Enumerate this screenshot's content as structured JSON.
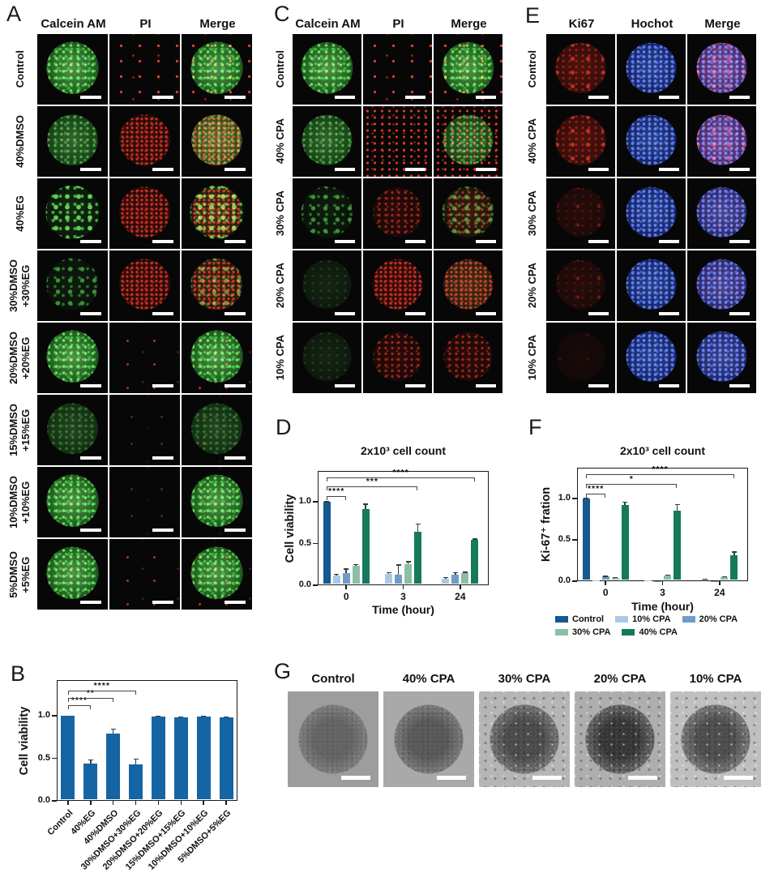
{
  "colors": {
    "control_blue": "#15598f",
    "cpa10_light_blue": "#abc9e6",
    "cpa20_mid_blue": "#6f9cc7",
    "cpa30_sage_green": "#8abfa3",
    "cpa40_dark_green": "#157a5b",
    "bar_steel_blue": "#1565a5"
  },
  "panels": {
    "A": {
      "label": "A",
      "columns": [
        "Calcein AM",
        "PI",
        "Merge"
      ],
      "rows": [
        {
          "label_lines": [
            "Control"
          ],
          "cells": [
            [
              "v-green-bright"
            ],
            [
              "v-red-field-sparse"
            ],
            [
              "v-green-bright",
              "v-red-field-sparse"
            ]
          ]
        },
        {
          "label_lines": [
            "40%DMSO"
          ],
          "cells": [
            [
              "v-green-med"
            ],
            [
              "v-red-blob-dense"
            ],
            [
              "v-green-med",
              "v-red-blob-dense"
            ]
          ]
        },
        {
          "label_lines": [
            "40%EG"
          ],
          "cells": [
            [
              "v-green-spots"
            ],
            [
              "v-red-blob-dense"
            ],
            [
              "v-green-spots",
              "v-red-blob-dense"
            ]
          ]
        },
        {
          "label_lines": [
            "30%DMSO",
            "+30%EG"
          ],
          "cells": [
            [
              "v-green-spots-dim"
            ],
            [
              "v-red-blob-dense"
            ],
            [
              "v-green-spots-dim",
              "v-red-blob-dense"
            ]
          ]
        },
        {
          "label_lines": [
            "20%DMSO",
            "+20%EG"
          ],
          "cells": [
            [
              "v-green-bright"
            ],
            [
              "v-red-field-few"
            ],
            [
              "v-green-bright",
              "v-red-field-few"
            ]
          ]
        },
        {
          "label_lines": [
            "15%DMSO",
            "+15%EG"
          ],
          "cells": [
            [
              "v-green-dim"
            ],
            [
              "v-red-field-dim"
            ],
            [
              "v-green-dim",
              "v-red-field-dim"
            ]
          ]
        },
        {
          "label_lines": [
            "10%DMSO",
            "+10%EG"
          ],
          "cells": [
            [
              "v-green-bright"
            ],
            [
              "v-red-field-dim"
            ],
            [
              "v-green-bright",
              "v-red-field-dim"
            ]
          ]
        },
        {
          "label_lines": [
            "5%DMSO",
            "+5%EG"
          ],
          "cells": [
            [
              "v-green-bright"
            ],
            [
              "v-red-field-few"
            ],
            [
              "v-green-bright",
              "v-red-field-few"
            ]
          ]
        }
      ]
    },
    "B": {
      "label": "B"
    },
    "C": {
      "label": "C",
      "columns": [
        "Calcein AM",
        "PI",
        "Merge"
      ],
      "rows": [
        {
          "label_lines": [
            "Control"
          ],
          "cells": [
            [
              "v-green-bright"
            ],
            [
              "v-red-field-sparse"
            ],
            [
              "v-green-bright",
              "v-red-field-sparse"
            ]
          ]
        },
        {
          "label_lines": [
            "40% CPA"
          ],
          "cells": [
            [
              "v-green-med"
            ],
            [
              "v-red-field-dense"
            ],
            [
              "v-green-med",
              "v-red-field-dense"
            ]
          ]
        },
        {
          "label_lines": [
            "30% CPA"
          ],
          "cells": [
            [
              "v-green-spots-dim"
            ],
            [
              "v-red-blob-med"
            ],
            [
              "v-red-blob-med",
              "v-green-spots-dim"
            ]
          ]
        },
        {
          "label_lines": [
            "20% CPA"
          ],
          "cells": [
            [
              "v-green-vdim"
            ],
            [
              "v-red-blob-dense"
            ],
            [
              "v-red-blob-dense",
              "v-green-vdim"
            ]
          ]
        },
        {
          "label_lines": [
            "10% CPA"
          ],
          "cells": [
            [
              "v-green-vdim"
            ],
            [
              "v-red-blob-med"
            ],
            [
              "v-red-blob-med"
            ]
          ]
        }
      ]
    },
    "D": {
      "label": "D"
    },
    "E": {
      "label": "E",
      "columns": [
        "Ki67",
        "Hochot",
        "Merge"
      ],
      "rows": [
        {
          "label_lines": [
            "Control"
          ],
          "cells": [
            [
              "v-ki67-bright"
            ],
            [
              "v-blue-blob"
            ],
            [
              "v-blue-blob",
              "v-ki67-bright"
            ]
          ]
        },
        {
          "label_lines": [
            "40% CPA"
          ],
          "cells": [
            [
              "v-ki67-bright"
            ],
            [
              "v-blue-blob"
            ],
            [
              "v-blue-blob",
              "v-ki67-bright"
            ]
          ]
        },
        {
          "label_lines": [
            "30% CPA"
          ],
          "cells": [
            [
              "v-ki67-dim"
            ],
            [
              "v-blue-blob"
            ],
            [
              "v-blue-blob",
              "v-ki67-dim"
            ]
          ]
        },
        {
          "label_lines": [
            "20% CPA"
          ],
          "cells": [
            [
              "v-ki67-dim"
            ],
            [
              "v-blue-blob"
            ],
            [
              "v-blue-blob",
              "v-ki67-dim"
            ]
          ]
        },
        {
          "label_lines": [
            "10% CPA"
          ],
          "cells": [
            [
              "v-ki67-vdim"
            ],
            [
              "v-blue-blob"
            ],
            [
              "v-blue-blob",
              "v-ki67-vdim"
            ]
          ]
        }
      ]
    },
    "F": {
      "label": "F"
    },
    "G": {
      "label": "G",
      "images": [
        {
          "label": "Control",
          "bg": "#9d9d9d",
          "core": "light",
          "scatter": false
        },
        {
          "label": "40% CPA",
          "bg": "#a9a9a9",
          "core": "med",
          "scatter": false
        },
        {
          "label": "30% CPA",
          "bg": "#b5b5b5",
          "core": "dark",
          "scatter": true
        },
        {
          "label": "20% CPA",
          "bg": "#aeaeae",
          "core": "darkest",
          "scatter": true
        },
        {
          "label": "10% CPA",
          "bg": "#bfbfbf",
          "core": "dark",
          "scatter": true
        }
      ]
    }
  },
  "chart_data": [
    {
      "id": "B",
      "type": "bar",
      "title": "",
      "ylabel": "Cell viability",
      "xlabel": "",
      "categories": [
        "Control",
        "40%EG",
        "40%DMSO",
        "30%DMSO+30%EG",
        "20%DMSO+20%EG",
        "15%DMSO+15%EG",
        "10%DMSO+10%EG",
        "5%DMSO+5%EG"
      ],
      "values": [
        1.0,
        0.44,
        0.79,
        0.43,
        0.99,
        0.98,
        0.99,
        0.98
      ],
      "errors": [
        0,
        0.05,
        0.06,
        0.07,
        0.012,
        0.012,
        0.012,
        0.015
      ],
      "bar_color": "#1565a5",
      "ylim": [
        0,
        1.42
      ],
      "yticks": [
        0,
        0.5,
        1.0
      ],
      "grid": false,
      "legend_position": "none",
      "significance": [
        {
          "from": 0,
          "to": 1,
          "label": "****"
        },
        {
          "from": 0,
          "to": 2,
          "label": "**"
        },
        {
          "from": 0,
          "to": 3,
          "label": "****"
        }
      ]
    },
    {
      "id": "D",
      "type": "grouped-bar",
      "title": "2x10³ cell count",
      "ylabel": "Cell viability",
      "xlabel": "Time (hour)",
      "categories": [
        "0",
        "3",
        "24"
      ],
      "series": [
        {
          "name": "Control",
          "color": "#15598f",
          "values": [
            1.0,
            null,
            null
          ],
          "errors": [
            0.01,
            null,
            null
          ]
        },
        {
          "name": "10% CPA",
          "color": "#abc9e6",
          "values": [
            0.12,
            0.14,
            0.08
          ],
          "errors": [
            0.02,
            0.02,
            0.02
          ]
        },
        {
          "name": "20% CPA",
          "color": "#6f9cc7",
          "values": [
            0.15,
            0.13,
            0.13
          ],
          "errors": [
            0.05,
            0.12,
            0.03
          ]
        },
        {
          "name": "30% CPA",
          "color": "#8abfa3",
          "values": [
            0.23,
            0.25,
            0.15
          ],
          "errors": [
            0.025,
            0.04,
            0.015
          ]
        },
        {
          "name": "40% CPA",
          "color": "#157a5b",
          "values": [
            0.91,
            0.64,
            0.54
          ],
          "errors": [
            0.07,
            0.1,
            0.02
          ]
        }
      ],
      "ylim": [
        0,
        1.37
      ],
      "yticks": [
        0,
        0.5,
        1.0
      ],
      "grid": false,
      "legend_position": "none",
      "significance": [
        {
          "from": [
            0,
            0
          ],
          "to": [
            0,
            2
          ],
          "label": "****"
        },
        {
          "from": [
            0,
            0
          ],
          "to": [
            1,
            4
          ],
          "label": "***"
        },
        {
          "from": [
            0,
            0
          ],
          "to": [
            2,
            4
          ],
          "label": "****"
        }
      ]
    },
    {
      "id": "F",
      "type": "grouped-bar",
      "title": "2x10³ cell count",
      "ylabel": "Ki-67⁺ fration",
      "xlabel": "Time (hour)",
      "categories": [
        "0",
        "3",
        "24"
      ],
      "series": [
        {
          "name": "Control",
          "color": "#15598f",
          "values": [
            1.0,
            null,
            null
          ],
          "errors": [
            0.01,
            null,
            null
          ]
        },
        {
          "name": "10% CPA",
          "color": "#abc9e6",
          "values": [
            0.005,
            0.012,
            0.02
          ],
          "errors": [
            0,
            0,
            0.01
          ]
        },
        {
          "name": "20% CPA",
          "color": "#6f9cc7",
          "values": [
            0.06,
            0.004,
            0.004
          ],
          "errors": [
            0.008,
            0,
            0
          ]
        },
        {
          "name": "30% CPA",
          "color": "#8abfa3",
          "values": [
            0.04,
            0.07,
            0.05
          ],
          "errors": [
            0.01,
            0.012,
            0.012
          ]
        },
        {
          "name": "40% CPA",
          "color": "#157a5b",
          "values": [
            0.92,
            0.85,
            0.31
          ],
          "errors": [
            0.04,
            0.08,
            0.05
          ]
        }
      ],
      "ylim": [
        0,
        1.37
      ],
      "yticks": [
        0,
        0.5,
        1.0
      ],
      "grid": false,
      "legend_position": "bottom",
      "legend_rows": [
        [
          "Control",
          "10% CPA",
          "20% CPA"
        ],
        [
          "30% CPA",
          "40% CPA"
        ]
      ],
      "significance": [
        {
          "from": [
            0,
            0
          ],
          "to": [
            0,
            2
          ],
          "label": "****"
        },
        {
          "from": [
            0,
            0
          ],
          "to": [
            1,
            4
          ],
          "label": "*"
        },
        {
          "from": [
            0,
            0
          ],
          "to": [
            2,
            4
          ],
          "label": "****"
        }
      ]
    }
  ]
}
